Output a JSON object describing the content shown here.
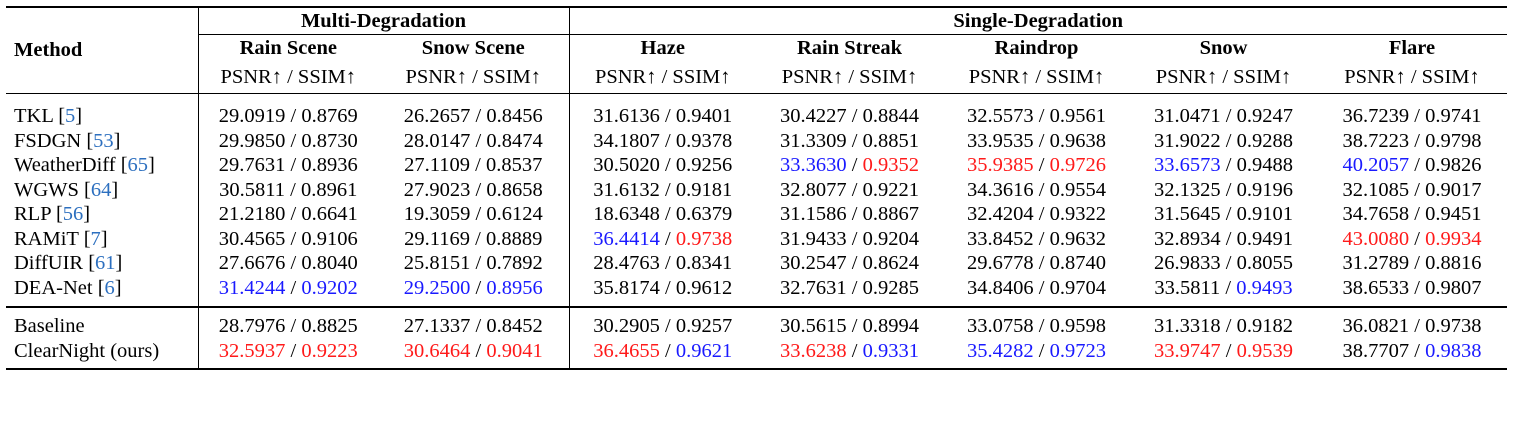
{
  "header": {
    "method": "Method",
    "multi_group": "Multi-Degradation",
    "single_group": "Single-Degradation",
    "columns": [
      "Rain Scene",
      "Snow Scene",
      "Haze",
      "Rain Streak",
      "Raindrop",
      "Snow",
      "Flare"
    ],
    "metric": "PSNR↑ / SSIM↑"
  },
  "separator": " / ",
  "rows": [
    {
      "name": "TKL",
      "ref": "5",
      "cells": [
        [
          "29.0919",
          "0.8769"
        ],
        [
          "26.2657",
          "0.8456"
        ],
        [
          "31.6136",
          "0.9401"
        ],
        [
          "30.4227",
          "0.8844"
        ],
        [
          "32.5573",
          "0.9561"
        ],
        [
          "31.0471",
          "0.9247"
        ],
        [
          "36.7239",
          "0.9741"
        ]
      ]
    },
    {
      "name": "FSDGN",
      "ref": "53",
      "cells": [
        [
          "29.9850",
          "0.8730"
        ],
        [
          "28.0147",
          "0.8474"
        ],
        [
          "34.1807",
          "0.9378"
        ],
        [
          "31.3309",
          "0.8851"
        ],
        [
          "33.9535",
          "0.9638"
        ],
        [
          "31.9022",
          "0.9288"
        ],
        [
          "38.7223",
          "0.9798"
        ]
      ]
    },
    {
      "name": "WeatherDiff",
      "ref": "65",
      "cells": [
        [
          "29.7631",
          "0.8936"
        ],
        [
          "27.1109",
          "0.8537"
        ],
        [
          "30.5020",
          "0.9256"
        ],
        [
          "33.3630",
          "0.9352"
        ],
        [
          "35.9385",
          "0.9726"
        ],
        [
          "33.6573",
          "0.9488"
        ],
        [
          "40.2057",
          "0.9826"
        ]
      ]
    },
    {
      "name": "WGWS",
      "ref": "64",
      "cells": [
        [
          "30.5811",
          "0.8961"
        ],
        [
          "27.9023",
          "0.8658"
        ],
        [
          "31.6132",
          "0.9181"
        ],
        [
          "32.8077",
          "0.9221"
        ],
        [
          "34.3616",
          "0.9554"
        ],
        [
          "32.1325",
          "0.9196"
        ],
        [
          "32.1085",
          "0.9017"
        ]
      ]
    },
    {
      "name": "RLP",
      "ref": "56",
      "cells": [
        [
          "21.2180",
          "0.6641"
        ],
        [
          "19.3059",
          "0.6124"
        ],
        [
          "18.6348",
          "0.6379"
        ],
        [
          "31.1586",
          "0.8867"
        ],
        [
          "32.4204",
          "0.9322"
        ],
        [
          "31.5645",
          "0.9101"
        ],
        [
          "34.7658",
          "0.9451"
        ]
      ]
    },
    {
      "name": "RAMiT",
      "ref": "7",
      "cells": [
        [
          "30.4565",
          "0.9106"
        ],
        [
          "29.1169",
          "0.8889"
        ],
        [
          "36.4414",
          "0.9738"
        ],
        [
          "31.9433",
          "0.9204"
        ],
        [
          "33.8452",
          "0.9632"
        ],
        [
          "32.8934",
          "0.9491"
        ],
        [
          "43.0080",
          "0.9934"
        ]
      ]
    },
    {
      "name": "DiffUIR",
      "ref": "61",
      "cells": [
        [
          "27.6676",
          "0.8040"
        ],
        [
          "25.8151",
          "0.7892"
        ],
        [
          "28.4763",
          "0.8341"
        ],
        [
          "30.2547",
          "0.8624"
        ],
        [
          "29.6778",
          "0.8740"
        ],
        [
          "26.9833",
          "0.8055"
        ],
        [
          "31.2789",
          "0.8816"
        ]
      ]
    },
    {
      "name": "DEA-Net",
      "ref": "6",
      "cells": [
        [
          "31.4244",
          "0.9202"
        ],
        [
          "29.2500",
          "0.8956"
        ],
        [
          "35.8174",
          "0.9612"
        ],
        [
          "32.7631",
          "0.9285"
        ],
        [
          "34.8406",
          "0.9704"
        ],
        [
          "33.5811",
          "0.9493"
        ],
        [
          "38.6533",
          "0.9807"
        ]
      ]
    }
  ],
  "rows_ours": [
    {
      "name": "Baseline",
      "cells": [
        [
          "28.7976",
          "0.8825"
        ],
        [
          "27.1337",
          "0.8452"
        ],
        [
          "30.2905",
          "0.9257"
        ],
        [
          "30.5615",
          "0.8994"
        ],
        [
          "33.0758",
          "0.9598"
        ],
        [
          "31.3318",
          "0.9182"
        ],
        [
          "36.0821",
          "0.9738"
        ]
      ]
    },
    {
      "name": "ClearNight (ours)",
      "cells": [
        [
          "32.5937",
          "0.9223"
        ],
        [
          "30.6464",
          "0.9041"
        ],
        [
          "36.4655",
          "0.9621"
        ],
        [
          "33.6238",
          "0.9331"
        ],
        [
          "35.4282",
          "0.9723"
        ],
        [
          "33.9747",
          "0.9539"
        ],
        [
          "38.7707",
          "0.9838"
        ]
      ]
    }
  ],
  "highlights": {
    "best_color": "#ff1a1a",
    "second_color": "#1a1aff",
    "cite_color": "#2c6fbf",
    "best": {
      "RAMiT": [
        [
          2,
          1
        ],
        [
          6,
          0
        ],
        [
          6,
          1
        ]
      ],
      "WeatherDiff": [
        [
          3,
          1
        ],
        [
          4,
          0
        ],
        [
          4,
          1
        ]
      ],
      "ClearNight (ours)": [
        [
          0,
          0
        ],
        [
          0,
          1
        ],
        [
          1,
          0
        ],
        [
          1,
          1
        ],
        [
          2,
          0
        ],
        [
          3,
          0
        ],
        [
          5,
          0
        ],
        [
          5,
          1
        ]
      ]
    },
    "second": {
      "WeatherDiff": [
        [
          3,
          0
        ],
        [
          5,
          0
        ],
        [
          6,
          0
        ]
      ],
      "RAMiT": [
        [
          2,
          0
        ]
      ],
      "DEA-Net": [
        [
          0,
          0
        ],
        [
          0,
          1
        ],
        [
          1,
          0
        ],
        [
          1,
          1
        ],
        [
          5,
          1
        ]
      ],
      "ClearNight (ours)": [
        [
          2,
          1
        ],
        [
          3,
          1
        ],
        [
          4,
          0
        ],
        [
          4,
          1
        ],
        [
          6,
          1
        ]
      ]
    }
  }
}
